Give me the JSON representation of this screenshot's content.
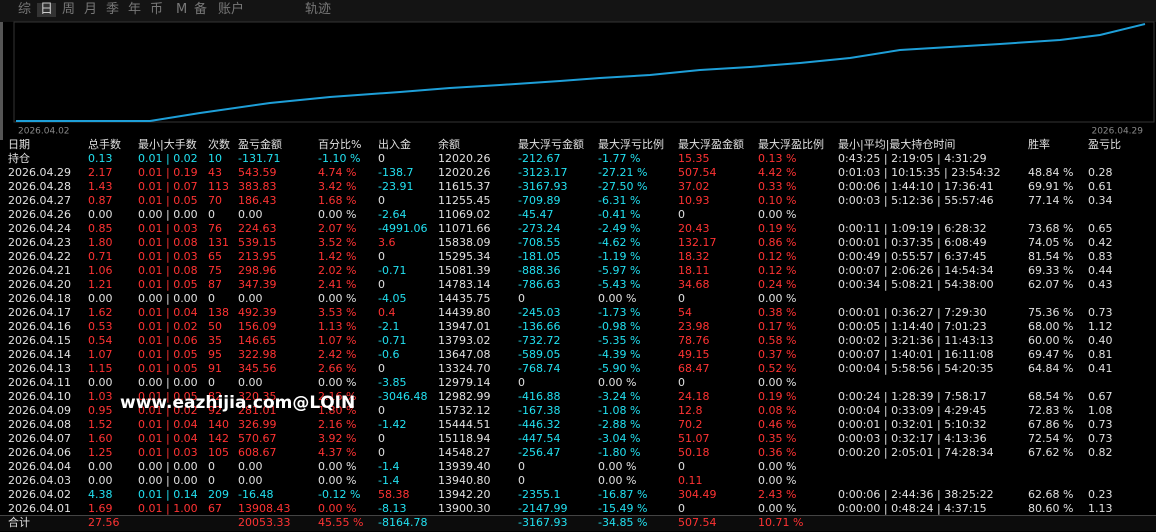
{
  "tabs": [
    "综",
    "日",
    "周",
    "月",
    "季",
    "年",
    "币",
    "M",
    "备",
    "账户",
    "轨迹"
  ],
  "chart": {
    "start_label": "2026.04.02",
    "end_label": "2026.04.29"
  },
  "watermark": "www.eazhijia.com@LQIN",
  "table": {
    "header": [
      "日期",
      "总手数",
      "最小|大手数",
      "次数",
      "盈亏金额",
      "百分比%",
      "出入金",
      "余额",
      "最大浮亏金额",
      "最大浮亏比例",
      "最大浮盈金额",
      "最大浮盈比例",
      "最小|平均|最大持仓时间",
      "胜率",
      "盈亏比"
    ],
    "rows": [
      [
        "持仓",
        "0.13",
        "0.01 | 0.02",
        "10",
        "-131.71",
        "-1.10 %",
        "0",
        "12020.26",
        "-212.67",
        "-1.77 %",
        "15.35",
        "0.13 %",
        "0:43:25 | 2:19:05 | 4:31:29",
        null,
        null
      ],
      [
        "2026.04.29",
        "2.17",
        "0.01 | 0.19",
        "43",
        "543.59",
        "4.74 %",
        "-138.7",
        "12020.26",
        "-3123.17",
        "-27.21 %",
        "507.54",
        "4.42 %",
        "0:01:03 | 10:15:35 | 23:54:32",
        "48.84 %",
        "0.28"
      ],
      [
        "2026.04.28",
        "1.43",
        "0.01 | 0.07",
        "113",
        "383.83",
        "3.42 %",
        "-23.91",
        "11615.37",
        "-3167.93",
        "-27.50 %",
        "37.02",
        "0.33 %",
        "0:00:06 | 1:44:10 | 17:36:41",
        "69.91 %",
        "0.61"
      ],
      [
        "2026.04.27",
        "0.87",
        "0.01 | 0.05",
        "70",
        "186.43",
        "1.68 %",
        "0",
        "11255.45",
        "-709.89",
        "-6.31 %",
        "10.93",
        "0.10 %",
        "0:00:03 | 5:12:36 | 55:57:46",
        "77.14 %",
        "0.34"
      ],
      [
        "2026.04.26",
        "0.00",
        "0.00 | 0.00",
        "0",
        "0.00",
        "0.00 %",
        "-2.64",
        "11069.02",
        "-45.47",
        "-0.41 %",
        "0",
        "0.00 %",
        null,
        null,
        null
      ],
      [
        "2026.04.24",
        "0.85",
        "0.01 | 0.03",
        "76",
        "224.63",
        "2.07 %",
        "-4991.06",
        "11071.66",
        "-273.24",
        "-2.49 %",
        "20.43",
        "0.19 %",
        "0:00:11 | 1:09:19 | 6:28:32",
        "73.68 %",
        "0.65"
      ],
      [
        "2026.04.23",
        "1.80",
        "0.01 | 0.08",
        "131",
        "539.15",
        "3.52 %",
        "3.6",
        "15838.09",
        "-708.55",
        "-4.62 %",
        "132.17",
        "0.86 %",
        "0:00:01 | 0:37:35 | 6:08:49",
        "74.05 %",
        "0.42"
      ],
      [
        "2026.04.22",
        "0.71",
        "0.01 | 0.03",
        "65",
        "213.95",
        "1.42 %",
        "0",
        "15295.34",
        "-181.05",
        "-1.19 %",
        "18.32",
        "0.12 %",
        "0:00:49 | 0:55:57 | 6:37:45",
        "81.54 %",
        "0.83"
      ],
      [
        "2026.04.21",
        "1.06",
        "0.01 | 0.08",
        "75",
        "298.96",
        "2.02 %",
        "-0.71",
        "15081.39",
        "-888.36",
        "-5.97 %",
        "18.11",
        "0.12 %",
        "0:00:07 | 2:06:26 | 14:54:34",
        "69.33 %",
        "0.44"
      ],
      [
        "2026.04.20",
        "1.21",
        "0.01 | 0.05",
        "87",
        "347.39",
        "2.41 %",
        "0",
        "14783.14",
        "-786.63",
        "-5.43 %",
        "34.68",
        "0.24 %",
        "0:00:34 | 5:08:21 | 54:38:00",
        "62.07 %",
        "0.43"
      ],
      [
        "2026.04.18",
        "0.00",
        "0.00 | 0.00",
        "0",
        "0.00",
        "0.00 %",
        "-4.05",
        "14435.75",
        "0",
        "0.00 %",
        "0",
        "0.00 %",
        null,
        null,
        null
      ],
      [
        "2026.04.17",
        "1.62",
        "0.01 | 0.04",
        "138",
        "492.39",
        "3.53 %",
        "0.4",
        "14439.80",
        "-245.03",
        "-1.73 %",
        "54",
        "0.38 %",
        "0:00:01 | 0:36:27 | 7:29:30",
        "75.36 %",
        "0.73"
      ],
      [
        "2026.04.16",
        "0.53",
        "0.01 | 0.02",
        "50",
        "156.09",
        "1.13 %",
        "-2.1",
        "13947.01",
        "-136.66",
        "-0.98 %",
        "23.98",
        "0.17 %",
        "0:00:05 | 1:14:40 | 7:01:23",
        "68.00 %",
        "1.12"
      ],
      [
        "2026.04.15",
        "0.54",
        "0.01 | 0.06",
        "35",
        "146.65",
        "1.07 %",
        "-0.71",
        "13793.02",
        "-732.72",
        "-5.35 %",
        "78.76",
        "0.58 %",
        "0:00:02 | 3:21:36 | 11:43:13",
        "60.00 %",
        "0.40"
      ],
      [
        "2026.04.14",
        "1.07",
        "0.01 | 0.05",
        "95",
        "322.98",
        "2.42 %",
        "-0.6",
        "13647.08",
        "-589.05",
        "-4.39 %",
        "49.15",
        "0.37 %",
        "0:00:07 | 1:40:01 | 16:11:08",
        "69.47 %",
        "0.81"
      ],
      [
        "2026.04.13",
        "1.15",
        "0.01 | 0.05",
        "91",
        "345.56",
        "2.66 %",
        "0",
        "13324.70",
        "-768.74",
        "-5.90 %",
        "68.47",
        "0.52 %",
        "0:00:04 | 5:58:56 | 54:20:35",
        "64.84 %",
        "0.41"
      ],
      [
        "2026.04.11",
        "0.00",
        "0.00 | 0.00",
        "0",
        "0.00",
        "0.00 %",
        "-3.85",
        "12979.14",
        "0",
        "0.00 %",
        "0",
        "0.00 %",
        null,
        null,
        null
      ],
      [
        "2026.04.10",
        "1.03",
        "0.01 | 0.05",
        "82",
        "320.35",
        "2.16 %",
        "-3046.48",
        "12982.99",
        "-416.88",
        "-3.24 %",
        "24.18",
        "0.19 %",
        "0:00:24 | 1:28:39 | 7:58:17",
        "68.54 %",
        "0.67"
      ],
      [
        "2026.04.09",
        "0.95",
        "0.01 | 0.02",
        "92",
        "281.01",
        "1.80 %",
        "0",
        "15732.12",
        "-167.38",
        "-1.08 %",
        "12.8",
        "0.08 %",
        "0:00:04 | 0:33:09 | 4:29:45",
        "72.83 %",
        "1.08"
      ],
      [
        "2026.04.08",
        "1.52",
        "0.01 | 0.04",
        "140",
        "326.99",
        "2.16 %",
        "-1.42",
        "15444.51",
        "-446.32",
        "-2.88 %",
        "70.2",
        "0.46 %",
        "0:00:01 | 0:32:01 | 5:10:32",
        "67.86 %",
        "0.73"
      ],
      [
        "2026.04.07",
        "1.60",
        "0.01 | 0.04",
        "142",
        "570.67",
        "3.92 %",
        "0",
        "15118.94",
        "-447.54",
        "-3.04 %",
        "51.07",
        "0.35 %",
        "0:00:03 | 0:32:17 | 4:13:36",
        "72.54 %",
        "0.73"
      ],
      [
        "2026.04.06",
        "1.25",
        "0.01 | 0.03",
        "105",
        "608.67",
        "4.37 %",
        "0",
        "14548.27",
        "-256.47",
        "-1.80 %",
        "50.18",
        "0.36 %",
        "0:00:20 | 2:05:01 | 74:28:34",
        "67.62 %",
        "0.82"
      ],
      [
        "2026.04.04",
        "0.00",
        "0.00 | 0.00",
        "0",
        "0.00",
        "0.00 %",
        "-1.4",
        "13939.40",
        "0",
        "0.00 %",
        "0",
        "0.00 %",
        null,
        null,
        null
      ],
      [
        "2026.04.03",
        "0.00",
        "0.00 | 0.00",
        "0",
        "0.00",
        "0.00 %",
        "-1.4",
        "13940.80",
        "0",
        "0.00 %",
        "0.11",
        "0.00 %",
        null,
        null,
        null
      ],
      [
        "2026.04.02",
        "4.38",
        "0.01 | 0.14",
        "209",
        "-16.48",
        "-0.12 %",
        "58.38",
        "13942.20",
        "-2355.1",
        "-16.87 %",
        "304.49",
        "2.43 %",
        "0:00:06 | 2:44:36 | 38:25:22",
        "62.68 %",
        "0.23"
      ],
      [
        "2026.04.01",
        "1.69",
        "0.01 | 1.00",
        "67",
        "13908.43",
        "0.00 %",
        "-8.13",
        "13900.30",
        "-2147.99",
        "-15.49 %",
        "0",
        "0.00 %",
        "0:00:00 | 0:48:24 | 4:37:15",
        "80.60 %",
        "1.13"
      ],
      [
        "合计",
        "27.56",
        null,
        null,
        "20053.33",
        "45.55 %",
        "-8164.78",
        null,
        "-3167.93",
        "-34.85 %",
        "507.54",
        "10.71 %",
        null,
        null,
        null
      ]
    ]
  }
}
